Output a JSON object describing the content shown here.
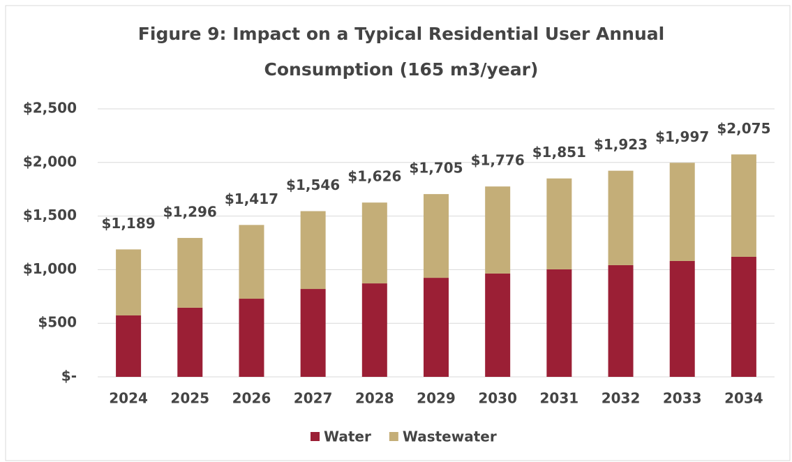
{
  "chart_data": {
    "type": "stacked_bar",
    "title": [
      "Figure 9: Impact on a Typical Residential User Annual",
      "Consumption (165 m3/year)"
    ],
    "categories": [
      "2024",
      "2025",
      "2026",
      "2027",
      "2028",
      "2029",
      "2030",
      "2031",
      "2032",
      "2033",
      "2034"
    ],
    "series": [
      {
        "name": "Water",
        "color": "#9b1f35",
        "values": [
          573,
          645,
          729,
          820,
          872,
          924,
          964,
          1003,
          1042,
          1081,
          1120
        ]
      },
      {
        "name": "Wastewater",
        "color": "#c4ae78",
        "values": [
          616,
          651,
          688,
          726,
          754,
          781,
          812,
          848,
          881,
          916,
          955
        ]
      }
    ],
    "total_labels": [
      "$1,189",
      "$1,296",
      "$1,417",
      "$1,546",
      "$1,626",
      "$1,705",
      "$1,776",
      "$1,851",
      "$1,923",
      "$1,997",
      "$2,075"
    ],
    "ylim": [
      0,
      2500
    ],
    "yticks": [
      {
        "value": 0,
        "label": "$-"
      },
      {
        "value": 500,
        "label": "$500"
      },
      {
        "value": 1000,
        "label": "$1,000"
      },
      {
        "value": 1500,
        "label": "$1,500"
      },
      {
        "value": 2000,
        "label": "$2,000"
      },
      {
        "value": 2500,
        "label": "$2,500"
      }
    ],
    "grid": true,
    "legend": "bottom"
  }
}
